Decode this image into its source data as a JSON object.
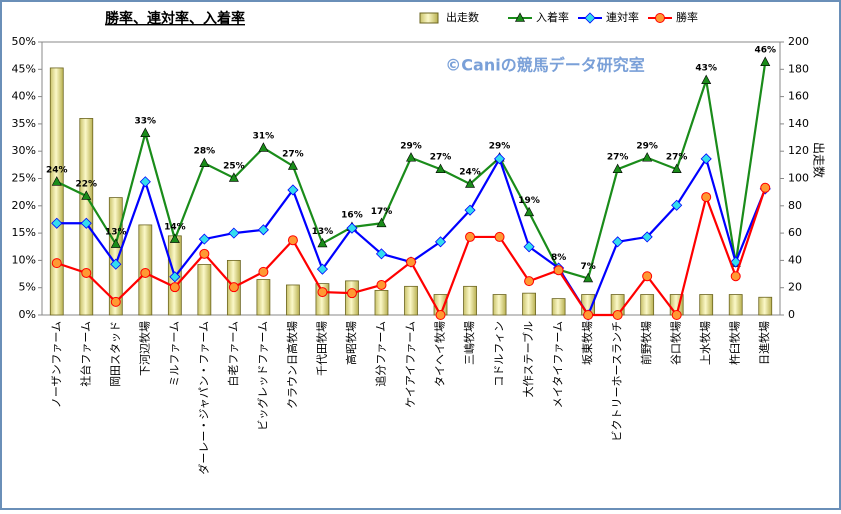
{
  "chart_data": {
    "type": "combo",
    "title": "勝率、連対率、入着率",
    "watermark": "©Caniの競馬データ研究室",
    "y2label": "出走数",
    "categories": [
      "ノーザンファーム",
      "社台ファーム",
      "岡田スタッド",
      "下河辺牧場",
      "ミルファーム",
      "ダーレー・ジャパン・ファーム",
      "白老ファーム",
      "ビッグレッドファーム",
      "クラウン日高牧場",
      "千代田牧場",
      "高昭牧場",
      "追分ファーム",
      "ケイアイファーム",
      "タイヘイ牧場",
      "三嶋牧場",
      "コドルフィン",
      "大作ステーブル",
      "メイタイファーム",
      "坂東牧場",
      "ビクトリーホースランチ",
      "前野牧場",
      "谷口牧場",
      "上水牧場",
      "杵臼牧場",
      "日進牧場"
    ],
    "series": [
      {
        "name": "出走数",
        "type": "bar",
        "axis": "y2",
        "color": "#f3eea0",
        "values": [
          181,
          144,
          86,
          66,
          58,
          37,
          40,
          26,
          22,
          23,
          25,
          18,
          21,
          15,
          21,
          15,
          16,
          12,
          15,
          15,
          15,
          15,
          15,
          15,
          13
        ]
      },
      {
        "name": "入着率",
        "type": "line",
        "axis": "y",
        "color": "#1a8c1a",
        "marker": "triangle",
        "values": [
          24.4,
          21.8,
          13.0,
          33.3,
          13.9,
          27.8,
          25.1,
          30.6,
          27.3,
          13.1,
          16.1,
          16.8,
          28.8,
          26.7,
          24.0,
          28.8,
          18.8,
          8.3,
          6.7,
          26.7,
          28.8,
          26.7,
          43.0,
          9.5,
          46.3
        ],
        "value_labels": [
          "24%",
          "22%",
          "13%",
          "33%",
          "14%",
          "28%",
          "25%",
          "31%",
          "27%",
          "13%",
          "16%",
          "17%",
          "29%",
          "27%",
          "24%",
          "29%",
          "19%",
          "8%",
          "7%",
          "27%",
          "29%",
          "27%",
          "43%",
          null,
          "46%"
        ]
      },
      {
        "name": "連対率",
        "type": "line",
        "axis": "y",
        "color": "#0000ff",
        "marker": "diamond",
        "values": [
          16.8,
          16.8,
          9.3,
          24.4,
          7.0,
          13.9,
          15.0,
          15.6,
          22.9,
          8.4,
          15.9,
          11.2,
          9.7,
          13.4,
          19.2,
          28.6,
          12.5,
          8.6,
          0,
          13.4,
          14.3,
          20.1,
          28.6,
          9.7,
          23.1
        ]
      },
      {
        "name": "勝率",
        "type": "line",
        "axis": "y",
        "color": "#ff0000",
        "marker": "circle",
        "values": [
          9.5,
          7.7,
          2.4,
          7.7,
          5.1,
          11.2,
          5.1,
          7.9,
          13.7,
          4.2,
          4.0,
          5.5,
          9.7,
          0,
          14.3,
          14.3,
          6.2,
          8.2,
          0,
          0,
          7.1,
          0,
          21.6,
          7.1,
          23.3
        ]
      }
    ],
    "ylim": [
      0,
      50
    ],
    "yticks": [
      {
        "value": 0,
        "label": "0%"
      },
      {
        "value": 5,
        "label": "5%"
      },
      {
        "value": 10,
        "label": "10%"
      },
      {
        "value": 15,
        "label": "15%"
      },
      {
        "value": 20,
        "label": "20%"
      },
      {
        "value": 25,
        "label": "25%"
      },
      {
        "value": 30,
        "label": "30%"
      },
      {
        "value": 35,
        "label": "35%"
      },
      {
        "value": 40,
        "label": "40%"
      },
      {
        "value": 45,
        "label": "45%"
      },
      {
        "value": 50,
        "label": "50%"
      }
    ],
    "y2lim": [
      0,
      200
    ],
    "y2ticks": [
      0,
      20,
      40,
      60,
      80,
      100,
      120,
      140,
      160,
      180,
      200
    ],
    "legend": "top"
  }
}
